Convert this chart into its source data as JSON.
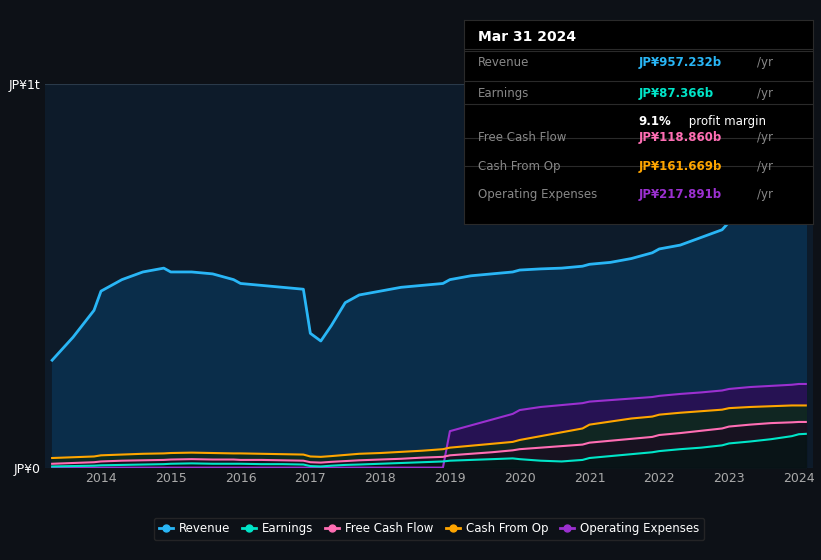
{
  "bg_color": "#0d1117",
  "plot_bg_color": "#0d1b2a",
  "years": [
    2013.3,
    2013.6,
    2013.9,
    2014.0,
    2014.3,
    2014.6,
    2014.9,
    2015.0,
    2015.3,
    2015.6,
    2015.9,
    2016.0,
    2016.3,
    2016.6,
    2016.9,
    2017.0,
    2017.15,
    2017.3,
    2017.5,
    2017.7,
    2018.0,
    2018.3,
    2018.6,
    2018.9,
    2019.0,
    2019.3,
    2019.6,
    2019.9,
    2020.0,
    2020.3,
    2020.6,
    2020.9,
    2021.0,
    2021.3,
    2021.6,
    2021.9,
    2022.0,
    2022.3,
    2022.6,
    2022.9,
    2023.0,
    2023.3,
    2023.6,
    2023.9,
    2024.0,
    2024.1
  ],
  "revenue": [
    280,
    340,
    410,
    460,
    490,
    510,
    520,
    510,
    510,
    505,
    490,
    480,
    475,
    470,
    465,
    350,
    330,
    370,
    430,
    450,
    460,
    470,
    475,
    480,
    490,
    500,
    505,
    510,
    515,
    518,
    520,
    525,
    530,
    535,
    545,
    560,
    570,
    580,
    600,
    620,
    640,
    690,
    760,
    870,
    957,
    970
  ],
  "earnings": [
    3,
    4,
    5,
    6,
    7,
    8,
    9,
    10,
    11,
    10,
    10,
    10,
    9,
    9,
    8,
    4,
    3,
    5,
    7,
    8,
    10,
    12,
    14,
    16,
    18,
    20,
    22,
    24,
    22,
    18,
    16,
    20,
    25,
    30,
    35,
    40,
    43,
    48,
    52,
    58,
    63,
    68,
    74,
    82,
    87,
    88
  ],
  "free_cash_flow": [
    10,
    12,
    14,
    16,
    18,
    19,
    20,
    21,
    22,
    21,
    21,
    20,
    20,
    19,
    18,
    14,
    13,
    15,
    17,
    19,
    21,
    23,
    26,
    28,
    32,
    36,
    40,
    45,
    48,
    52,
    56,
    60,
    65,
    70,
    75,
    80,
    85,
    90,
    96,
    102,
    107,
    112,
    116,
    118,
    119,
    119
  ],
  "cash_from_op": [
    25,
    27,
    29,
    32,
    34,
    36,
    37,
    38,
    39,
    38,
    37,
    37,
    36,
    35,
    34,
    29,
    28,
    30,
    33,
    36,
    38,
    41,
    44,
    48,
    52,
    57,
    62,
    67,
    72,
    82,
    92,
    102,
    112,
    120,
    128,
    133,
    138,
    143,
    147,
    151,
    155,
    158,
    160,
    162,
    162,
    162
  ],
  "operating_expenses": [
    0,
    0,
    0,
    0,
    0,
    0,
    0,
    0,
    0,
    0,
    0,
    0,
    0,
    0,
    0,
    0,
    0,
    0,
    0,
    0,
    0,
    0,
    0,
    0,
    95,
    110,
    125,
    140,
    150,
    158,
    163,
    168,
    172,
    176,
    180,
    184,
    187,
    192,
    196,
    201,
    205,
    210,
    213,
    216,
    218,
    218
  ],
  "revenue_color": "#29b6f6",
  "earnings_color": "#00e5c8",
  "free_cash_flow_color": "#ff6eb4",
  "cash_from_op_color": "#ffa500",
  "operating_expenses_color": "#9b30d0",
  "revenue_fill": "#0a2d4a",
  "ylabel_1t": "JP¥1t",
  "ylabel_0": "JP¥0",
  "xtick_labels": [
    "2014",
    "2015",
    "2016",
    "2017",
    "2018",
    "2019",
    "2020",
    "2021",
    "2022",
    "2023",
    "2024"
  ],
  "xtick_positions": [
    2014,
    2015,
    2016,
    2017,
    2018,
    2019,
    2020,
    2021,
    2022,
    2023,
    2024
  ],
  "legend_items": [
    {
      "label": "Revenue",
      "color": "#29b6f6"
    },
    {
      "label": "Earnings",
      "color": "#00e5c8"
    },
    {
      "label": "Free Cash Flow",
      "color": "#ff6eb4"
    },
    {
      "label": "Cash From Op",
      "color": "#ffa500"
    },
    {
      "label": "Operating Expenses",
      "color": "#9b30d0"
    }
  ],
  "tooltip": {
    "date": "Mar 31 2024",
    "rows": [
      {
        "label": "Revenue",
        "value": "JP¥957.232b",
        "unit": "/yr",
        "color": "#29b6f6"
      },
      {
        "label": "Earnings",
        "value": "JP¥87.366b",
        "unit": "/yr",
        "color": "#00e5c8"
      },
      {
        "label": "",
        "value": "9.1%",
        "unit": " profit margin",
        "color": "white"
      },
      {
        "label": "Free Cash Flow",
        "value": "JP¥118.860b",
        "unit": "/yr",
        "color": "#ff6eb4"
      },
      {
        "label": "Cash From Op",
        "value": "JP¥161.669b",
        "unit": "/yr",
        "color": "#ffa500"
      },
      {
        "label": "Operating Expenses",
        "value": "JP¥217.891b",
        "unit": "/yr",
        "color": "#9b30d0"
      }
    ]
  }
}
